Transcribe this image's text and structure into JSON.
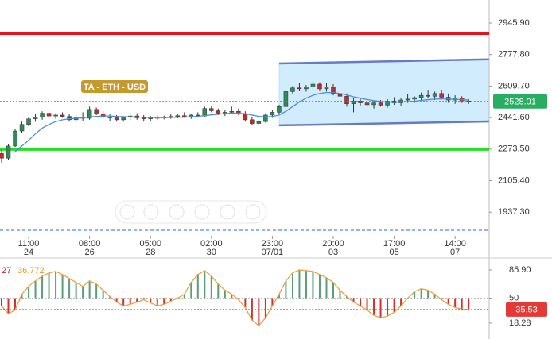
{
  "chart_data": [
    {
      "type": "candlestick",
      "title": "TA - ETH - USD",
      "categories": [
        null,
        null,
        null,
        null,
        "11:00",
        null,
        null,
        null,
        null,
        null,
        null,
        null,
        null,
        "08:00",
        null,
        null,
        null,
        null,
        null,
        null,
        null,
        null,
        "05:00",
        null,
        null,
        null,
        null,
        null,
        null,
        null,
        null,
        "02:00",
        null,
        null,
        null,
        null,
        null,
        null,
        null,
        null,
        "23:00",
        null,
        null,
        null,
        null,
        null,
        null,
        null,
        null,
        "20:00",
        null,
        null,
        null,
        null,
        null,
        null,
        null,
        null,
        "17:00",
        null,
        null,
        null,
        null,
        null,
        null,
        null,
        null,
        "14:00",
        null,
        null
      ],
      "dates": [
        null,
        null,
        null,
        null,
        "24",
        null,
        null,
        null,
        null,
        null,
        null,
        null,
        null,
        "26",
        null,
        null,
        null,
        null,
        null,
        null,
        null,
        null,
        "28",
        null,
        null,
        null,
        null,
        null,
        null,
        null,
        null,
        "30",
        null,
        null,
        null,
        null,
        null,
        null,
        null,
        null,
        "07/01",
        null,
        null,
        null,
        null,
        null,
        null,
        null,
        null,
        "03",
        null,
        null,
        null,
        null,
        null,
        null,
        null,
        null,
        "05",
        null,
        null,
        null,
        null,
        null,
        null,
        null,
        null,
        "07",
        null,
        null
      ],
      "open": [
        2250,
        2225,
        2290,
        2370,
        2405,
        2435,
        2445,
        2465,
        2450,
        2455,
        2448,
        2430,
        2445,
        2438,
        2485,
        2460,
        2445,
        2440,
        2430,
        2445,
        2450,
        2440,
        2435,
        2442,
        2440,
        2445,
        2448,
        2452,
        2445,
        2455,
        2450,
        2490,
        2478,
        2465,
        2470,
        2475,
        2462,
        2430,
        2410,
        2420,
        2455,
        2470,
        2500,
        2580,
        2600,
        2595,
        2605,
        2620,
        2595,
        2605,
        2570,
        2555,
        2515,
        2530,
        2520,
        2510,
        2520,
        2508,
        2530,
        2520,
        2535,
        2540,
        2548,
        2560,
        2555,
        2570,
        2550,
        2535,
        2545,
        2530
      ],
      "high": [
        2270,
        2300,
        2380,
        2420,
        2445,
        2460,
        2475,
        2480,
        2465,
        2470,
        2460,
        2455,
        2470,
        2500,
        2495,
        2475,
        2460,
        2455,
        2450,
        2460,
        2465,
        2455,
        2450,
        2455,
        2452,
        2460,
        2462,
        2470,
        2460,
        2470,
        2500,
        2505,
        2490,
        2480,
        2500,
        2490,
        2475,
        2445,
        2430,
        2465,
        2480,
        2510,
        2590,
        2610,
        2625,
        2615,
        2640,
        2630,
        2625,
        2620,
        2590,
        2570,
        2545,
        2545,
        2535,
        2530,
        2535,
        2540,
        2550,
        2545,
        2565,
        2555,
        2575,
        2590,
        2580,
        2590,
        2570,
        2560,
        2555,
        2540
      ],
      "low": [
        2200,
        2215,
        2285,
        2360,
        2395,
        2420,
        2430,
        2440,
        2435,
        2440,
        2420,
        2415,
        2425,
        2430,
        2455,
        2435,
        2425,
        2420,
        2420,
        2430,
        2430,
        2420,
        2425,
        2430,
        2432,
        2435,
        2438,
        2440,
        2435,
        2445,
        2445,
        2470,
        2455,
        2450,
        2460,
        2455,
        2420,
        2400,
        2395,
        2415,
        2440,
        2460,
        2495,
        2570,
        2585,
        2580,
        2590,
        2585,
        2580,
        2560,
        2540,
        2500,
        2470,
        2505,
        2495,
        2490,
        2500,
        2495,
        2510,
        2505,
        2520,
        2520,
        2535,
        2545,
        2535,
        2540,
        2520,
        2515,
        2520,
        2515
      ],
      "close": [
        2225,
        2290,
        2370,
        2405,
        2435,
        2445,
        2465,
        2450,
        2455,
        2448,
        2430,
        2445,
        2438,
        2485,
        2460,
        2445,
        2440,
        2430,
        2445,
        2450,
        2440,
        2435,
        2442,
        2440,
        2445,
        2448,
        2452,
        2445,
        2455,
        2450,
        2490,
        2478,
        2465,
        2470,
        2475,
        2462,
        2430,
        2410,
        2420,
        2455,
        2470,
        2500,
        2580,
        2600,
        2595,
        2605,
        2620,
        2595,
        2605,
        2570,
        2555,
        2515,
        2530,
        2520,
        2510,
        2520,
        2508,
        2530,
        2520,
        2535,
        2540,
        2548,
        2560,
        2555,
        2570,
        2550,
        2535,
        2545,
        2530,
        2528.01
      ],
      "up_color": "#2e8b57",
      "down_color": "#c62828",
      "ma": {
        "color": "#4a90d9",
        "values": [
          null,
          null,
          2260,
          2290,
          2320,
          2355,
          2385,
          2405,
          2420,
          2430,
          2435,
          2438,
          2440,
          2445,
          2448,
          2450,
          2450,
          2448,
          2446,
          2445,
          2444,
          2443,
          2442,
          2441,
          2441,
          2442,
          2443,
          2444,
          2446,
          2448,
          2452,
          2456,
          2460,
          2463,
          2465,
          2465,
          2462,
          2455,
          2448,
          2445,
          2447,
          2455,
          2475,
          2500,
          2525,
          2545,
          2560,
          2570,
          2575,
          2575,
          2570,
          2562,
          2552,
          2545,
          2538,
          2532,
          2527,
          2524,
          2523,
          2524,
          2526,
          2529,
          2533,
          2537,
          2540,
          2541,
          2540,
          2539,
          2537,
          2535
        ]
      },
      "levels": [
        {
          "value": 2890.9,
          "color": "#e8131a",
          "dashed": false
        },
        {
          "value": 2273,
          "color": "#22e022",
          "dashed": false
        },
        {
          "value": 1841,
          "color": "#6a9be8",
          "dashed": true
        }
      ],
      "channel": {
        "x": [
          41,
          72
        ],
        "upper": [
          2730,
          2752
        ],
        "lower": [
          2400,
          2421
        ],
        "color": "#6a78c8",
        "fill": "rgba(135,206,250,0.38)"
      },
      "last_color": "#27ae60",
      "ylim": [
        1713.8,
        3068.7
      ],
      "yticks": [
        {
          "value": 2945.9,
          "label": "2945.90"
        },
        {
          "value": 2777.8,
          "label": "2777.80"
        },
        {
          "value": 2609.7,
          "label": "2609.70"
        },
        {
          "value": 2441.6,
          "label": "2441.60"
        },
        {
          "value": 2273.5,
          "label": "2273.50"
        },
        {
          "value": 2105.4,
          "label": "2105.40"
        },
        {
          "value": 1937.3,
          "label": "1937.30"
        }
      ]
    },
    {
      "type": "oscillator",
      "header_values": [
        27,
        36.772
      ],
      "header_colors": [
        "#c62828",
        "#e69a28"
      ],
      "values": [
        40,
        30,
        35,
        55,
        65,
        72,
        78,
        82,
        84,
        80,
        75,
        70,
        65,
        72,
        68,
        60,
        52,
        45,
        40,
        42,
        45,
        48,
        44,
        40,
        42,
        46,
        50,
        55,
        70,
        80,
        85,
        78,
        68,
        60,
        55,
        48,
        38,
        22,
        15,
        25,
        40,
        55,
        72,
        82,
        86,
        85,
        84,
        80,
        76,
        70,
        60,
        52,
        45,
        40,
        35,
        28,
        25,
        27,
        32,
        40,
        50,
        58,
        62,
        60,
        55,
        48,
        42,
        38,
        36,
        35.53
      ],
      "baseline": 50,
      "line_color": "#f0a040",
      "up_color": "#5a9e78",
      "down_color": "#d32f2f",
      "last_color": "#e53935",
      "ylim": [
        0,
        98
      ],
      "yticks": [
        {
          "value": 85.9,
          "label": "85.90"
        },
        50,
        18.28
      ]
    }
  ]
}
